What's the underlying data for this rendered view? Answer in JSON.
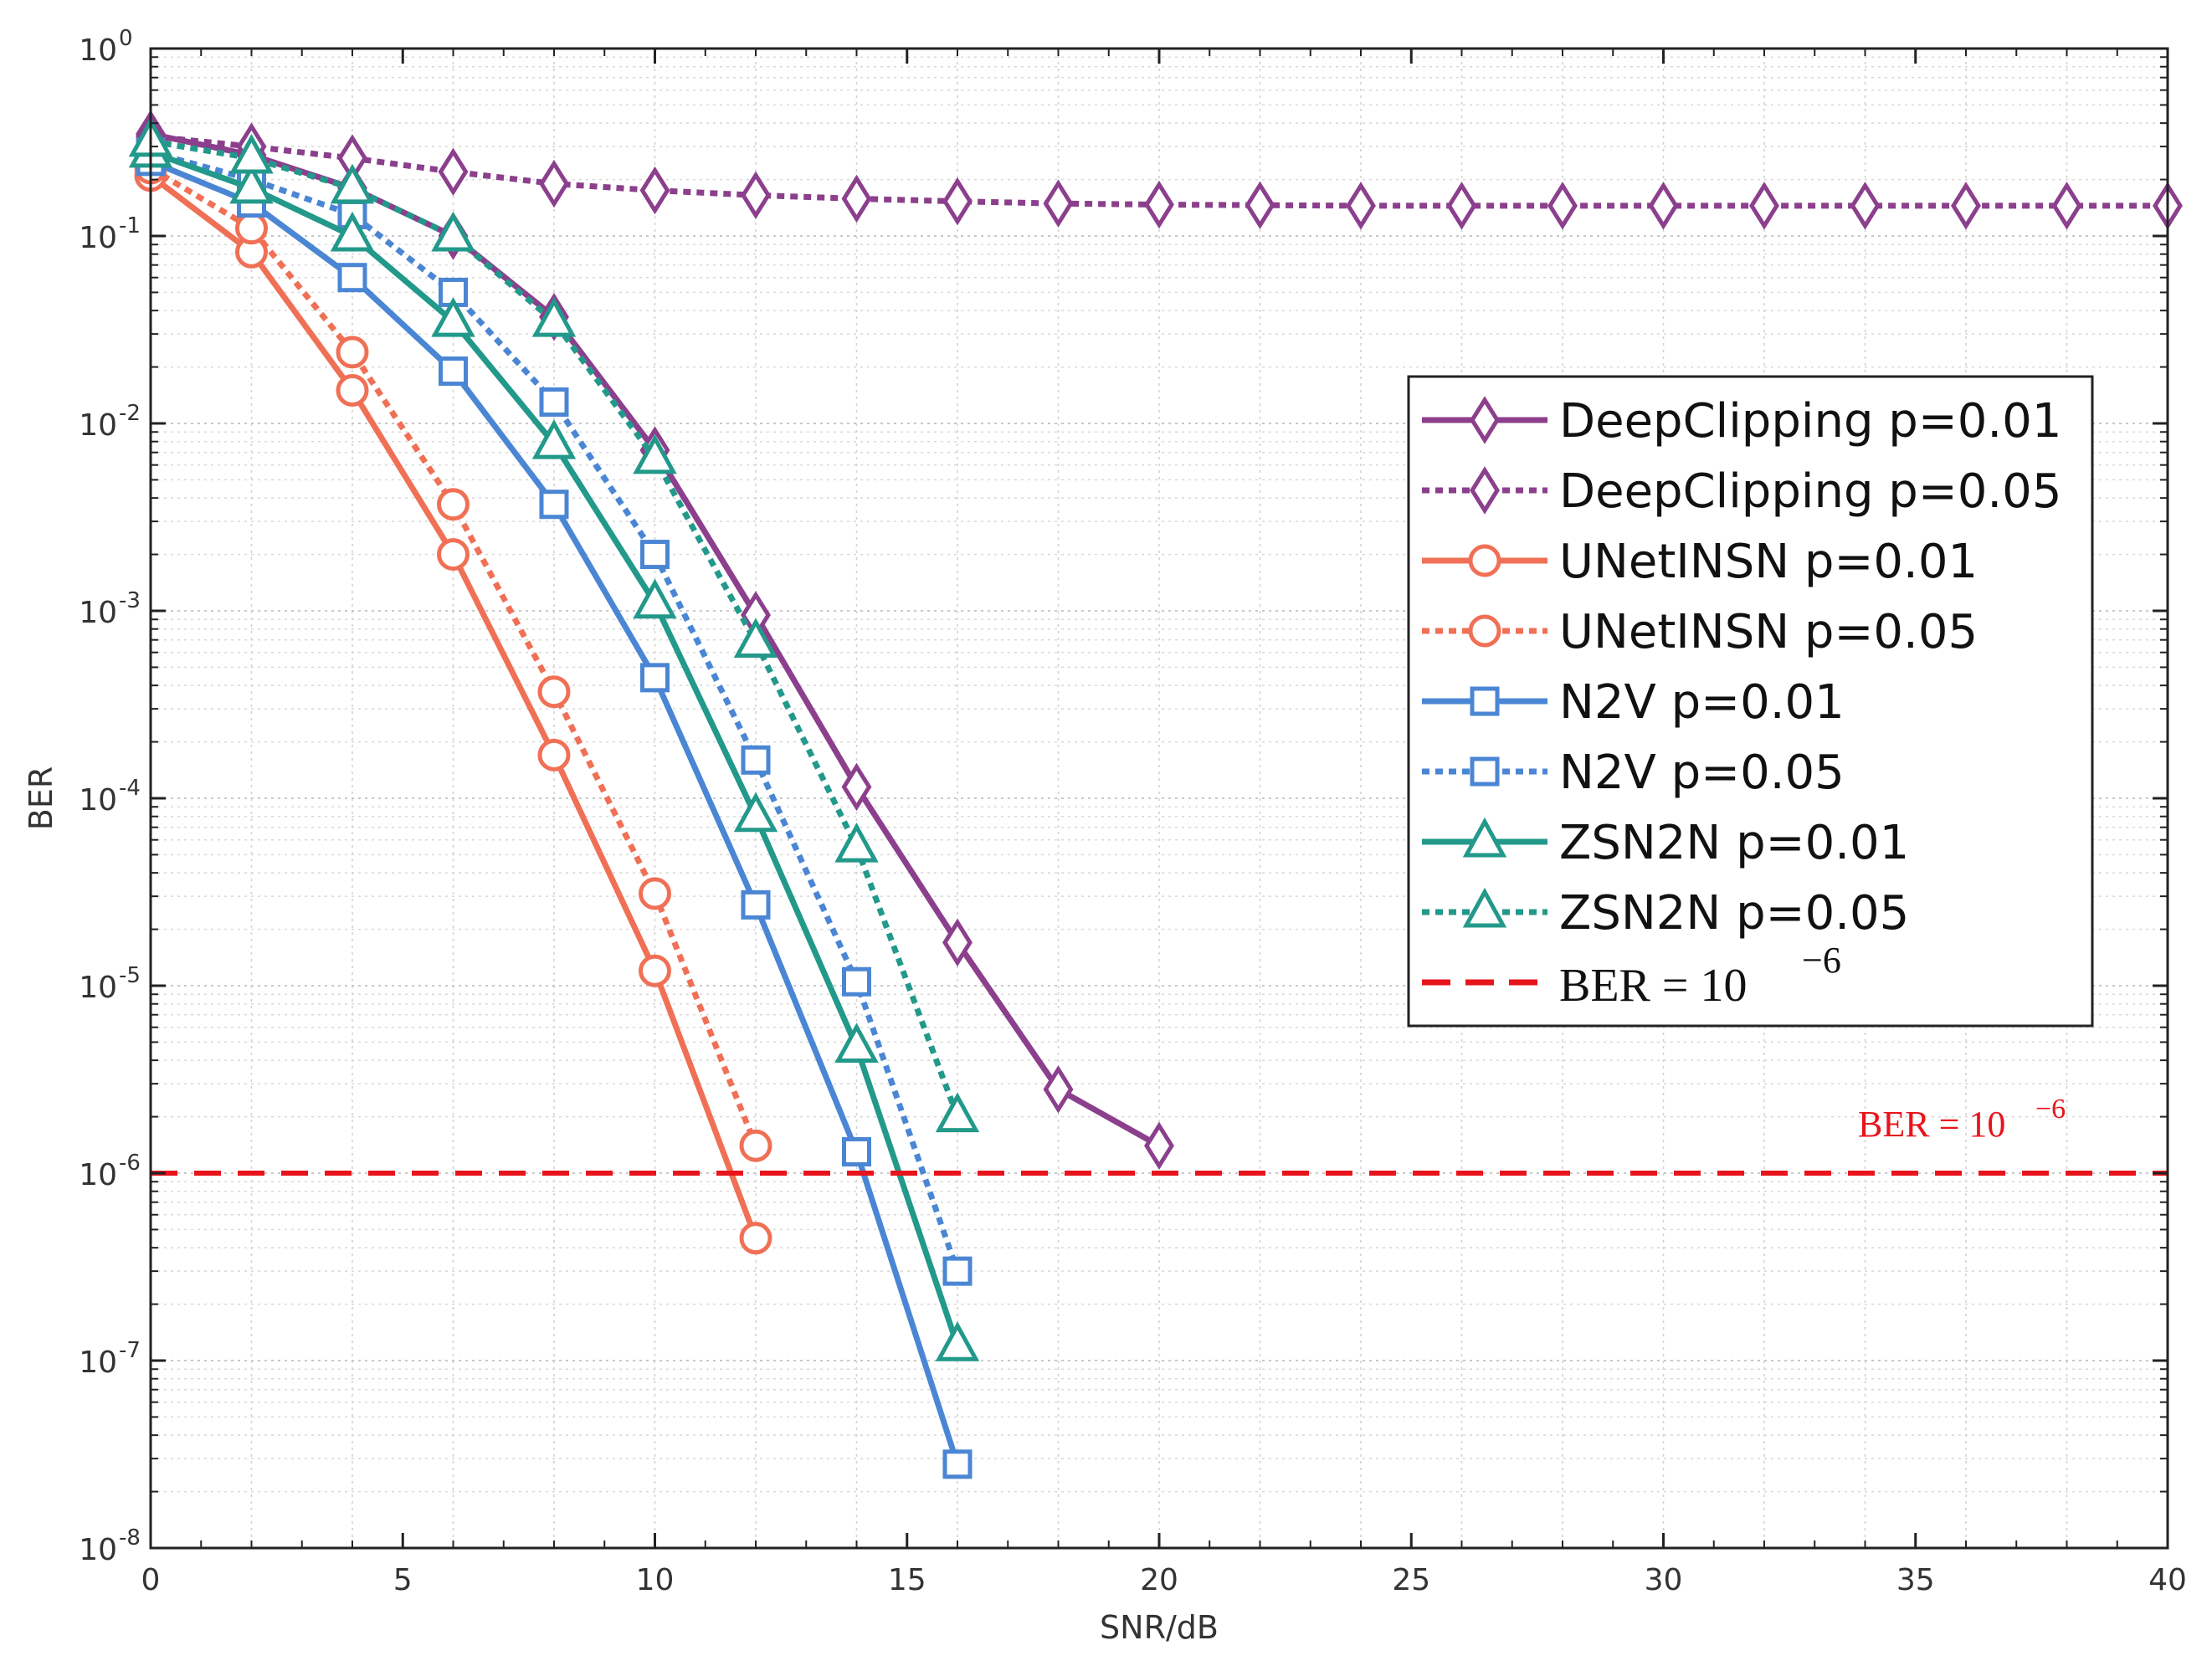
{
  "chart_data": {
    "type": "line",
    "xlabel": "SNR/dB",
    "ylabel": "BER",
    "xlim": [
      0,
      40
    ],
    "ylim_exponents": [
      -8,
      0
    ],
    "y_scale": "log",
    "x_ticks": [
      "0",
      "5",
      "10",
      "15",
      "20",
      "25",
      "30",
      "35",
      "40"
    ],
    "y_tick_base": "10",
    "y_tick_exponents": [
      "0",
      "-1",
      "-2",
      "-3",
      "-4",
      "-5",
      "-6",
      "-7",
      "-8"
    ],
    "grid": true,
    "legend_position": "right",
    "series": [
      {
        "name": "DeepClipping p=0.01",
        "color": "#8B3F8C",
        "style": "solid",
        "marker": "diamond",
        "x": [
          0,
          2,
          4,
          6,
          8,
          10,
          12,
          14,
          16,
          18,
          20
        ],
        "y": [
          0.35,
          0.27,
          0.18,
          0.1,
          0.037,
          0.0072,
          0.00095,
          0.000115,
          1.7e-05,
          2.8e-06,
          1.4e-06
        ]
      },
      {
        "name": "DeepClipping p=0.05",
        "color": "#8B3F8C",
        "style": "dotted",
        "marker": "diamond",
        "x": [
          0,
          2,
          4,
          6,
          8,
          10,
          12,
          14,
          16,
          18,
          20,
          22,
          24,
          26,
          28,
          30,
          32,
          34,
          36,
          38,
          40
        ],
        "y": [
          0.34,
          0.3,
          0.26,
          0.22,
          0.19,
          0.175,
          0.165,
          0.158,
          0.153,
          0.149,
          0.147,
          0.146,
          0.145,
          0.145,
          0.145,
          0.145,
          0.145,
          0.145,
          0.145,
          0.145,
          0.145
        ]
      },
      {
        "name": "UNetINSN p=0.01",
        "color": "#F07056",
        "style": "solid",
        "marker": "circle",
        "x": [
          0,
          2,
          4,
          6,
          8,
          10,
          12
        ],
        "y": [
          0.21,
          0.082,
          0.015,
          0.002,
          0.00017,
          1.2e-05,
          4.5e-07
        ]
      },
      {
        "name": "UNetINSN p=0.05",
        "color": "#F07056",
        "style": "dotted",
        "marker": "circle",
        "x": [
          0,
          2,
          4,
          6,
          8,
          10,
          12
        ],
        "y": [
          0.23,
          0.11,
          0.024,
          0.0037,
          0.00037,
          3.1e-05,
          1.4e-06
        ]
      },
      {
        "name": "N2V p=0.01",
        "color": "#4A86D4",
        "style": "solid",
        "marker": "square",
        "x": [
          0,
          2,
          4,
          6,
          8,
          10,
          12,
          14,
          16
        ],
        "y": [
          0.25,
          0.15,
          0.06,
          0.019,
          0.0037,
          0.00044,
          2.7e-05,
          1.3e-06,
          2.8e-08
        ]
      },
      {
        "name": "N2V p=0.05",
        "color": "#4A86D4",
        "style": "dotted",
        "marker": "square",
        "x": [
          0,
          2,
          4,
          6,
          8,
          10,
          12,
          14,
          16
        ],
        "y": [
          0.28,
          0.2,
          0.13,
          0.05,
          0.013,
          0.002,
          0.00016,
          1.05e-05,
          3e-07
        ]
      },
      {
        "name": "ZSN2N p=0.01",
        "color": "#22998A",
        "style": "solid",
        "marker": "triangle",
        "x": [
          0,
          2,
          4,
          6,
          8,
          10,
          12,
          14,
          16
        ],
        "y": [
          0.28,
          0.18,
          0.1,
          0.035,
          0.0078,
          0.0011,
          8e-05,
          4.7e-06,
          1.2e-07
        ]
      },
      {
        "name": "ZSN2N p=0.05",
        "color": "#22998A",
        "style": "dotted",
        "marker": "triangle",
        "x": [
          0,
          2,
          4,
          6,
          8,
          10,
          12,
          14,
          16
        ],
        "y": [
          0.32,
          0.26,
          0.18,
          0.1,
          0.035,
          0.0065,
          0.00068,
          5.5e-05,
          2e-06
        ]
      }
    ],
    "reference_line": {
      "legend_text": "BER = 10",
      "legend_exponent": "−6",
      "annotation_text": "BER = 10",
      "annotation_exponent": "−6",
      "y": 1e-06,
      "color": "#E8141C",
      "style": "dashed"
    }
  }
}
